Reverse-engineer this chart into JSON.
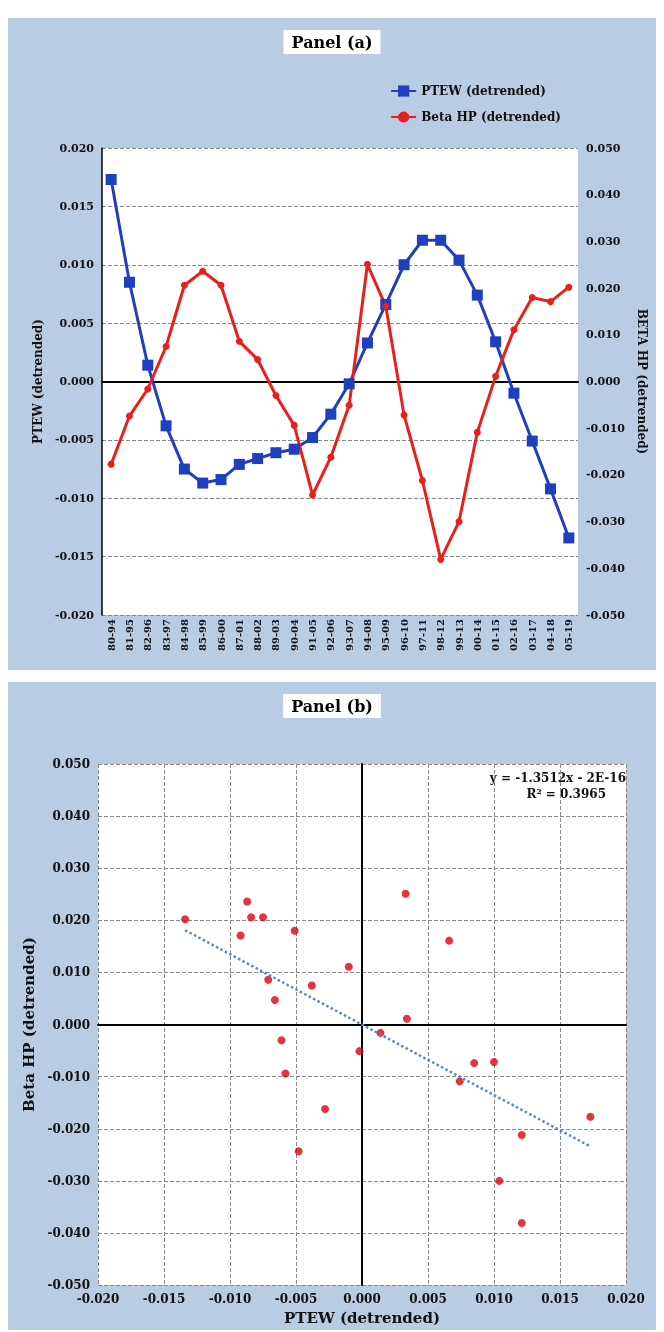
{
  "chart_data": [
    {
      "type": "line",
      "title": "Panel (a)",
      "ylabel": "PTEW (detrended)",
      "y2label": "BETA HP (detrended)",
      "categories": [
        "80-94",
        "81-95",
        "82-96",
        "83-97",
        "84-98",
        "85-99",
        "86-00",
        "87-01",
        "88-02",
        "89-03",
        "90-04",
        "91-05",
        "92-06",
        "93-07",
        "94-08",
        "95-09",
        "96-10",
        "97-11",
        "98-12",
        "99-13",
        "00-14",
        "01-15",
        "02-16",
        "03-17",
        "04-18",
        "05-19"
      ],
      "series": [
        {
          "name": "PTEW (detrended)",
          "color": "#1f3fbf",
          "marker": "square",
          "values": [
            0.0173,
            0.0085,
            0.0014,
            -0.0038,
            -0.0075,
            -0.0087,
            -0.0084,
            -0.0071,
            -0.0066,
            -0.0061,
            -0.0058,
            -0.0048,
            -0.0028,
            -0.0002,
            0.0033,
            0.0066,
            0.01,
            0.0121,
            0.0121,
            0.0104,
            0.0074,
            0.0034,
            -0.001,
            -0.0051,
            -0.0092,
            -0.0134
          ]
        },
        {
          "name": "Beta HP (detrended)",
          "color": "#e8201c",
          "marker": "circle",
          "axis": "y2",
          "values": [
            -0.0177,
            -0.0074,
            -0.0016,
            0.0075,
            0.0206,
            0.0236,
            0.0206,
            0.0086,
            0.0047,
            -0.003,
            -0.0094,
            -0.0243,
            -0.0162,
            -0.0051,
            0.0251,
            0.0161,
            -0.0072,
            -0.0212,
            -0.0381,
            -0.03,
            -0.0109,
            0.0011,
            0.0111,
            0.018,
            0.0171,
            0.0202
          ]
        }
      ],
      "ylim": [
        -0.02,
        0.02
      ],
      "yticks": [
        {
          "value": -0.02,
          "label": "-0.020"
        },
        {
          "value": -0.015,
          "label": "-0.015"
        },
        {
          "value": -0.01,
          "label": "-0.010"
        },
        {
          "value": -0.005,
          "label": "-0.005"
        },
        {
          "value": 0,
          "label": "0.000"
        },
        {
          "value": 0.005,
          "label": "0.005"
        },
        {
          "value": 0.01,
          "label": "0.010"
        },
        {
          "value": 0.015,
          "label": "0.015"
        },
        {
          "value": 0.02,
          "label": "0.020"
        }
      ],
      "y2lim": [
        -0.05,
        0.05
      ],
      "y2ticks": [
        {
          "value": -0.05,
          "label": "-0.050"
        },
        {
          "value": -0.04,
          "label": "-0.040"
        },
        {
          "value": -0.03,
          "label": "-0.030"
        },
        {
          "value": -0.02,
          "label": "-0.020"
        },
        {
          "value": -0.01,
          "label": "-0.010"
        },
        {
          "value": 0,
          "label": "0.000"
        },
        {
          "value": 0.01,
          "label": "0.010"
        },
        {
          "value": 0.02,
          "label": "0.020"
        },
        {
          "value": 0.03,
          "label": "0.030"
        },
        {
          "value": 0.04,
          "label": "0.040"
        },
        {
          "value": 0.05,
          "label": "0.050"
        }
      ],
      "grid": "y",
      "legend": "top right"
    },
    {
      "type": "scatter",
      "title": "Panel (b)",
      "xlabel": "PTEW (detrended)",
      "ylabel": "Beta HP (detrended)",
      "series": [
        {
          "type": "scatter",
          "color": "#e00010",
          "marker": "circle",
          "x": [
            0.0173,
            0.0085,
            0.0014,
            -0.0038,
            -0.0075,
            -0.0087,
            -0.0084,
            -0.0071,
            -0.0066,
            -0.0061,
            -0.0058,
            -0.0048,
            -0.0028,
            -0.0002,
            0.0033,
            0.0066,
            0.01,
            0.0121,
            0.0121,
            0.0104,
            0.0074,
            0.0034,
            -0.001,
            -0.0051,
            -0.0092,
            -0.0134
          ],
          "values": [
            -0.0177,
            -0.0074,
            -0.0016,
            0.0075,
            0.0206,
            0.0236,
            0.0206,
            0.0086,
            0.0047,
            -0.003,
            -0.0094,
            -0.0243,
            -0.0162,
            -0.0051,
            0.0251,
            0.0161,
            -0.0072,
            -0.0212,
            -0.0381,
            -0.03,
            -0.0109,
            0.0011,
            0.0111,
            0.018,
            0.0171,
            0.0202
          ]
        },
        {
          "type": "line",
          "color": "#5b87c5",
          "marker": "none",
          "line_style": "dotted",
          "x": [
            -0.0134,
            0.0173
          ],
          "values": [
            0.0181,
            -0.0234
          ]
        }
      ],
      "xlim": [
        -0.02,
        0.02
      ],
      "xticks": [
        {
          "value": -0.02,
          "label": "-0.020"
        },
        {
          "value": -0.015,
          "label": "-0.015"
        },
        {
          "value": -0.01,
          "label": "-0.010"
        },
        {
          "value": -0.005,
          "label": "-0.005"
        },
        {
          "value": 0,
          "label": "0.000"
        },
        {
          "value": 0.005,
          "label": "0.005"
        },
        {
          "value": 0.01,
          "label": "0.010"
        },
        {
          "value": 0.015,
          "label": "0.015"
        },
        {
          "value": 0.02,
          "label": "0.020"
        }
      ],
      "ylim": [
        -0.05,
        0.05
      ],
      "yticks": [
        {
          "value": -0.05,
          "label": "-0.050"
        },
        {
          "value": -0.04,
          "label": "-0.040"
        },
        {
          "value": -0.03,
          "label": "-0.030"
        },
        {
          "value": -0.02,
          "label": "-0.020"
        },
        {
          "value": -0.01,
          "label": "-0.010"
        },
        {
          "value": 0,
          "label": "0.000"
        },
        {
          "value": 0.01,
          "label": "0.010"
        },
        {
          "value": 0.02,
          "label": "0.020"
        },
        {
          "value": 0.03,
          "label": "0.030"
        },
        {
          "value": 0.04,
          "label": "0.040"
        },
        {
          "value": 0.05,
          "label": "0.050"
        }
      ],
      "grid": true,
      "annotations": [
        "y = -1.3512x - 2E-16",
        "R² = 0.3965"
      ]
    }
  ]
}
